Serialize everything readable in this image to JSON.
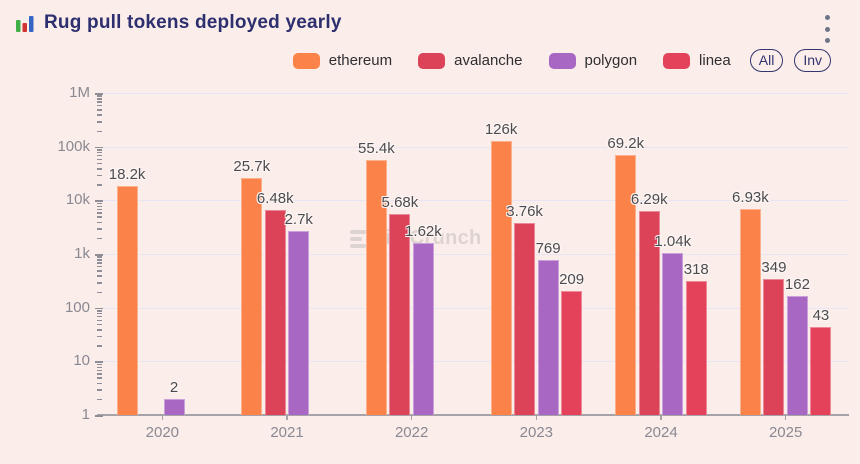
{
  "header": {
    "title": "Rug pull tokens deployed yearly"
  },
  "legend": {
    "items": [
      {
        "label": "ethereum",
        "color": "#fb8249"
      },
      {
        "label": "avalanche",
        "color": "#dc4258"
      },
      {
        "label": "polygon",
        "color": "#a867c2"
      },
      {
        "label": "linea",
        "color": "#e4415a"
      }
    ],
    "buttons": [
      {
        "label": "All"
      },
      {
        "label": "Inv"
      }
    ]
  },
  "watermark": {
    "text": "bitsCrunch"
  },
  "icons": {
    "title": "bar-chart-icon",
    "menu": "kebab-menu-icon"
  },
  "chart_data": {
    "type": "bar",
    "title": "Rug pull tokens deployed yearly",
    "categories": [
      "2020",
      "2021",
      "2022",
      "2023",
      "2024",
      "2025"
    ],
    "series": [
      {
        "name": "ethereum",
        "color": "#fb8249",
        "values": [
          18200,
          25700,
          55400,
          126000,
          69200,
          6930
        ],
        "labels": [
          "18.2k",
          "25.7k",
          "55.4k",
          "126k",
          "69.2k",
          "6.93k"
        ]
      },
      {
        "name": "avalanche",
        "color": "#dc4258",
        "values": [
          null,
          6480,
          5680,
          3760,
          6290,
          349
        ],
        "labels": [
          null,
          "6.48k",
          "5.68k",
          "3.76k",
          "6.29k",
          "349"
        ]
      },
      {
        "name": "polygon",
        "color": "#a867c2",
        "values": [
          2,
          2700,
          1620,
          769,
          1040,
          162
        ],
        "labels": [
          "2",
          "2.7k",
          "1.62k",
          "769",
          "1.04k",
          "162"
        ]
      },
      {
        "name": "linea",
        "color": "#e4415a",
        "values": [
          null,
          null,
          null,
          209,
          318,
          43
        ],
        "labels": [
          null,
          null,
          null,
          "209",
          "318",
          "43"
        ]
      }
    ],
    "y_axis": {
      "scale": "log",
      "min": 1,
      "max": 1000000,
      "tick_labels": [
        "1M",
        "100k",
        "10k",
        "1k",
        "100",
        "10",
        "1"
      ]
    },
    "grid": true,
    "legend_position": "top"
  }
}
